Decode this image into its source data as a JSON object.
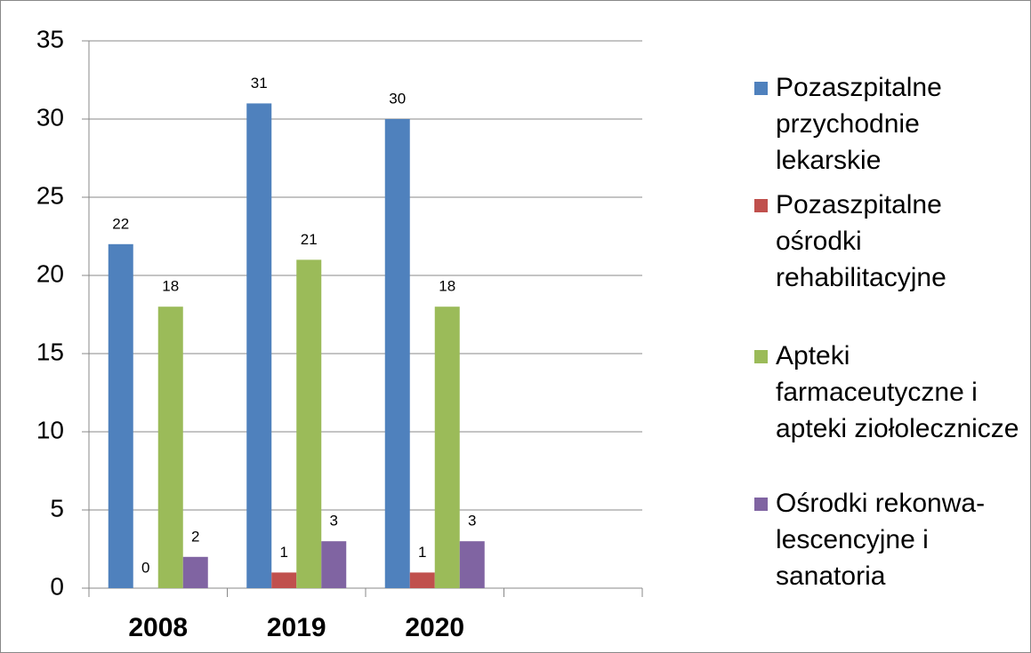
{
  "chart_data": {
    "type": "bar",
    "categories": [
      "2008",
      "2019",
      "2020",
      null
    ],
    "series": [
      {
        "name": "Pozaszpitalne przychodnie lekarskie",
        "color": "#4f81bd",
        "values": [
          22,
          31,
          30,
          null
        ]
      },
      {
        "name": "Pozaszpitalne ośrodki rehabilitacyjne",
        "color": "#c0504d",
        "values": [
          0,
          1,
          1,
          null
        ]
      },
      {
        "name": "Apteki farmaceutyczne i apteki ziołolecznicze",
        "color": "#9bbb59",
        "values": [
          18,
          21,
          18,
          null
        ]
      },
      {
        "name": "Ośrodki rekonwa-lescencyjne i sanatoria",
        "color": "#8064a2",
        "values": [
          2,
          3,
          3,
          null
        ]
      }
    ],
    "ylim": [
      0,
      35
    ],
    "yticks": [
      0,
      5,
      10,
      15,
      20,
      25,
      30,
      35
    ],
    "grid": true,
    "legend": "right"
  }
}
